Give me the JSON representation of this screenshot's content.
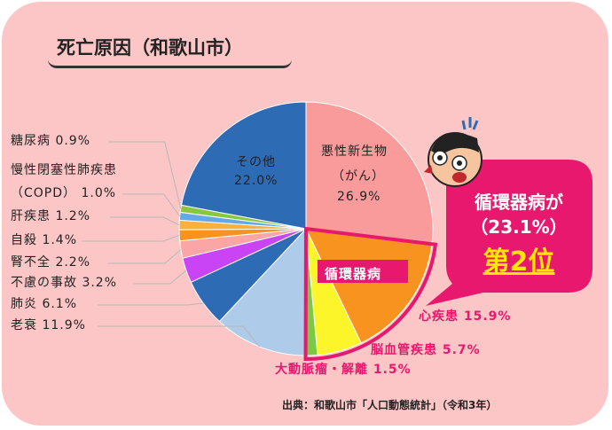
{
  "title": "死亡原因（和歌山市）",
  "chart_data": {
    "type": "pie",
    "title": "死亡原因（和歌山市）",
    "slices": [
      {
        "label": "悪性新生物（がん）",
        "value": 26.9,
        "color": "#f99b9b"
      },
      {
        "label": "心疾患",
        "value": 15.9,
        "color": "#f7931e"
      },
      {
        "label": "脳血管疾患",
        "value": 5.7,
        "color": "#fbf52a"
      },
      {
        "label": "大動脈瘤・解離",
        "value": 1.5,
        "color": "#7ac943"
      },
      {
        "label": "老衰",
        "value": 11.9,
        "color": "#aecbea"
      },
      {
        "label": "肺炎",
        "value": 6.1,
        "color": "#2e6bb5"
      },
      {
        "label": "不慮の事故",
        "value": 3.2,
        "color": "#c944f5"
      },
      {
        "label": "腎不全",
        "value": 2.2,
        "color": "#fba6a6"
      },
      {
        "label": "自殺",
        "value": 1.4,
        "color": "#f7931e"
      },
      {
        "label": "肝疾患",
        "value": 1.2,
        "color": "#fbb03b"
      },
      {
        "label": "慢性閉塞性肺疾患（COPD）",
        "value": 1.0,
        "color": "#61a9e8"
      },
      {
        "label": "糖尿病",
        "value": 0.9,
        "color": "#8cc63f"
      },
      {
        "label": "その他",
        "value": 22.0,
        "color": "#2e6bb5"
      }
    ],
    "group_label": "循環器病"
  },
  "labels": {
    "cancer_line1": "悪性新生物",
    "cancer_line2": "（がん）",
    "cancer_pct": "26.9%",
    "other_line1": "その他",
    "other_pct": "22.0%",
    "diabetes": "糖尿病 0.9%",
    "copd_line1": "慢性閉塞性肺疾患",
    "copd_line2": "（COPD） 1.0%",
    "liver": "肝疾患 1.2%",
    "suicide": "自殺 1.4%",
    "kidney": "腎不全 2.2%",
    "accident": "不慮の事故 3.2%",
    "pneumonia": "肺炎 6.1%",
    "senility": "老衰 11.9%",
    "heart": "心疾患 15.9%",
    "cerebro": "脳血管疾患 5.7%",
    "aorta": "大動脈瘤・解離 1.5%",
    "group": "循環器病"
  },
  "callout": {
    "line1": "循環器病が",
    "line2": "（23.1%）",
    "line3": "第2位"
  },
  "source": "出典：和歌山市「人口動態統計」（令和3年）"
}
